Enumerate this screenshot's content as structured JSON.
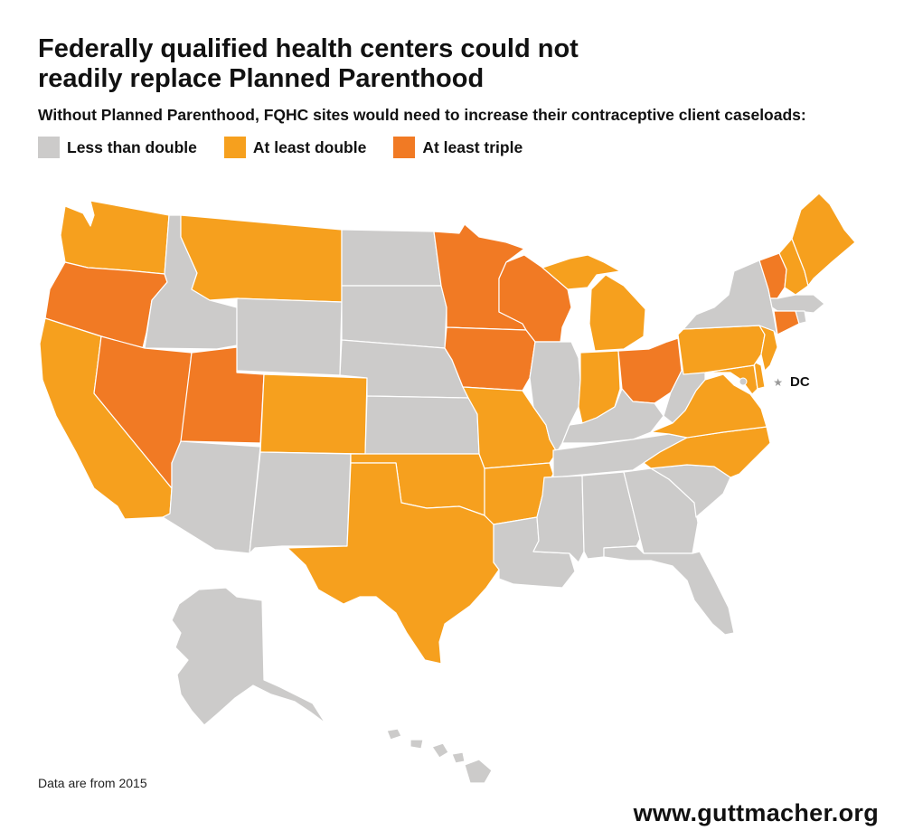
{
  "title_line1": "Federally qualified health centers could not",
  "title_line2": "readily replace Planned Parenthood",
  "subtitle": "Without Planned Parenthood, FQHC sites would need to increase their contraceptive client caseloads:",
  "legend": [
    {
      "key": "low",
      "label": "Less than double",
      "color": "#cccbca"
    },
    {
      "key": "mid",
      "label": "At least double",
      "color": "#f6a01e"
    },
    {
      "key": "high",
      "label": "At least triple",
      "color": "#f17a24"
    }
  ],
  "dc_label": "DC",
  "footnote": "Data are from 2015",
  "site_url": "www.guttmacher.org",
  "map_data": {
    "categories": {
      "Less than double": [
        "ID",
        "WY",
        "ND",
        "SD",
        "NE",
        "KS",
        "AZ",
        "NM",
        "IL",
        "KY",
        "TN",
        "MS",
        "AL",
        "GA",
        "SC",
        "FL",
        "LA",
        "WV",
        "NY",
        "MA",
        "RI",
        "AK",
        "HI",
        "DC"
      ],
      "At least double": [
        "WA",
        "CA",
        "MT",
        "CO",
        "TX",
        "OK",
        "MO",
        "AR",
        "MI",
        "IN",
        "PA",
        "NJ",
        "DE",
        "MD",
        "VA",
        "NC",
        "ME",
        "NH"
      ],
      "At least triple": [
        "OR",
        "NV",
        "UT",
        "MN",
        "IA",
        "WI",
        "OH",
        "VT",
        "CT"
      ]
    }
  }
}
